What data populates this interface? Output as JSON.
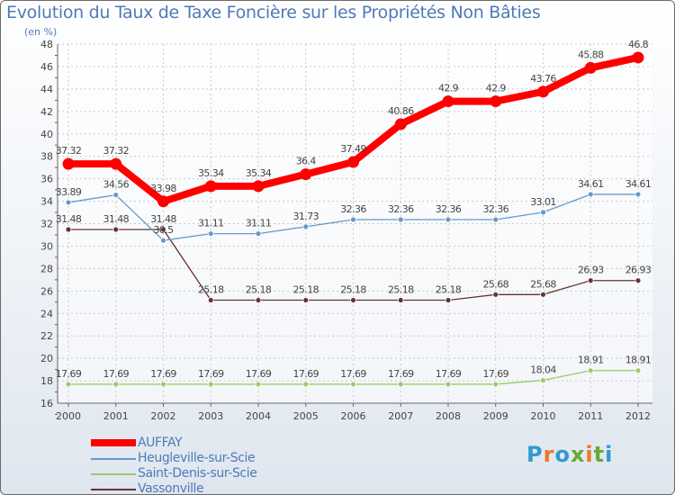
{
  "chart_data": {
    "type": "line",
    "title": "Evolution du Taux de Taxe Foncière sur les Propriétés Non Bâties",
    "unit_label": "(en %)",
    "x": [
      "2000",
      "2001",
      "2002",
      "2003",
      "2004",
      "2005",
      "2006",
      "2007",
      "2008",
      "2009",
      "2010",
      "2011",
      "2012"
    ],
    "ylim": [
      16,
      48
    ],
    "yticks": [
      16,
      18,
      20,
      22,
      24,
      26,
      28,
      30,
      32,
      34,
      36,
      38,
      40,
      42,
      44,
      46,
      48
    ],
    "grid": true,
    "legend_position": "bottom-left",
    "series": [
      {
        "name": "AUFFAY",
        "color": "#ff0000",
        "values": [
          37.32,
          37.32,
          33.98,
          35.34,
          35.34,
          36.4,
          37.49,
          40.86,
          42.9,
          42.9,
          43.76,
          45.88,
          46.8
        ],
        "labels": [
          "37.32",
          "37.32",
          "33.98",
          "35.34",
          "35.34",
          "36.4",
          "37.49",
          "40.86",
          "42.9",
          "42.9",
          "43.76",
          "45.88",
          "46.8"
        ]
      },
      {
        "name": "Heugleville-sur-Scie",
        "color": "#6699cc",
        "values": [
          33.89,
          34.56,
          30.5,
          31.11,
          31.11,
          31.73,
          32.36,
          32.36,
          32.36,
          32.36,
          33.01,
          34.61,
          34.61
        ],
        "labels": [
          "33.89",
          "34.56",
          "30.5",
          "31.11",
          "31.11",
          "31.73",
          "32.36",
          "32.36",
          "32.36",
          "32.36",
          "33.01",
          "34.61",
          "34.61"
        ]
      },
      {
        "name": "Saint-Denis-sur-Scie",
        "color": "#99cc66",
        "values": [
          17.69,
          17.69,
          17.69,
          17.69,
          17.69,
          17.69,
          17.69,
          17.69,
          17.69,
          17.69,
          18.04,
          18.91,
          18.91
        ],
        "labels": [
          "17.69",
          "17.69",
          "17.69",
          "17.69",
          "17.69",
          "17.69",
          "17.69",
          "17.69",
          "17.69",
          "17.69",
          "18.04",
          "18.91",
          "18.91"
        ]
      },
      {
        "name": "Vassonville",
        "color": "#663333",
        "values": [
          31.48,
          31.48,
          31.48,
          25.18,
          25.18,
          25.18,
          25.18,
          25.18,
          25.18,
          25.68,
          25.68,
          26.93,
          26.93
        ],
        "labels": [
          "31.48",
          "31.48",
          "31.48",
          "25.18",
          "25.18",
          "25.18",
          "25.18",
          "25.18",
          "25.18",
          "25.68",
          "25.68",
          "26.93",
          "26.93"
        ]
      }
    ]
  },
  "legend": {
    "items": [
      {
        "label": "AUFFAY",
        "color": "#ff0000"
      },
      {
        "label": "Heugleville-sur-Scie",
        "color": "#6699cc"
      },
      {
        "label": "Saint-Denis-sur-Scie",
        "color": "#99cc66"
      },
      {
        "label": "Vassonville",
        "color": "#663333"
      }
    ]
  },
  "logo": {
    "text": "Proxiti"
  }
}
